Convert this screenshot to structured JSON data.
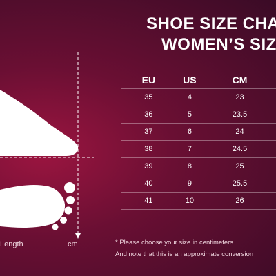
{
  "title": {
    "line1": "SHOE SIZE CHA",
    "line2": "WOMEN’S SIZ"
  },
  "table": {
    "headers": [
      "EU",
      "US",
      "CM"
    ],
    "rows": [
      [
        "35",
        "4",
        "23"
      ],
      [
        "36",
        "5",
        "23.5"
      ],
      [
        "37",
        "6",
        "24"
      ],
      [
        "38",
        "7",
        "24.5"
      ],
      [
        "39",
        "8",
        "25"
      ],
      [
        "40",
        "9",
        "25.5"
      ],
      [
        "41",
        "10",
        "26"
      ]
    ]
  },
  "note": {
    "line1": "* Please choose your size in centimeters.",
    "line2": "And note that this is an approximate conversion"
  },
  "illustration": {
    "foot_length_label": "Length",
    "unit_label": "cm"
  },
  "colors": {
    "background": "#6a0f33",
    "accent": "#9c1540",
    "text": "#ffffff"
  }
}
